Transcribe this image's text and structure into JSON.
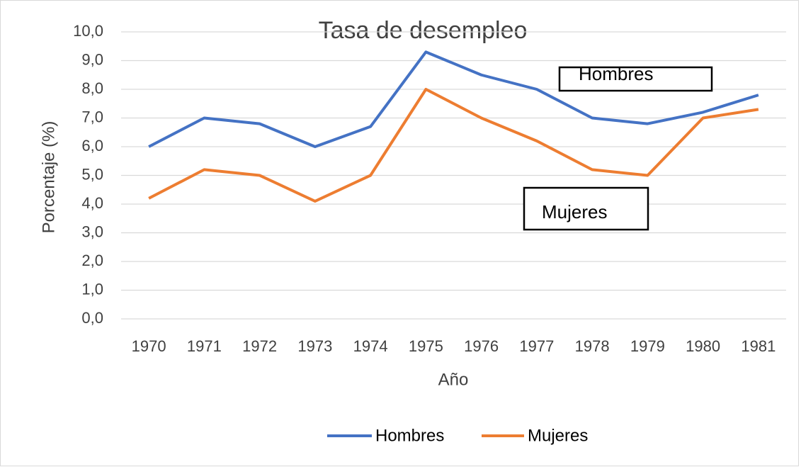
{
  "chart_data": {
    "type": "line",
    "title": "Tasa de desempleo",
    "x_label": "Año",
    "y_label": "Porcentaje (%)",
    "categories": [
      "1970",
      "1971",
      "1972",
      "1973",
      "1974",
      "1975",
      "1976",
      "1977",
      "1978",
      "1979",
      "1980",
      "1981"
    ],
    "series": [
      {
        "name": "Hombres",
        "color": "#4472c4",
        "values": [
          6.0,
          7.0,
          6.8,
          6.0,
          6.7,
          9.3,
          8.5,
          8.0,
          7.0,
          6.8,
          7.2,
          7.8
        ]
      },
      {
        "name": "Mujeres",
        "color": "#ed7d31",
        "values": [
          4.2,
          5.2,
          5.0,
          4.1,
          5.0,
          8.0,
          7.0,
          6.2,
          5.2,
          5.0,
          7.0,
          7.3
        ]
      }
    ],
    "ylim": [
      0,
      10
    ],
    "yticks": [
      {
        "value": 0,
        "label": "0,0"
      },
      {
        "value": 1,
        "label": "1,0"
      },
      {
        "value": 2,
        "label": "2,0"
      },
      {
        "value": 3,
        "label": "3,0"
      },
      {
        "value": 4,
        "label": "4,0"
      },
      {
        "value": 5,
        "label": "5,0"
      },
      {
        "value": 6,
        "label": "6,0"
      },
      {
        "value": 7,
        "label": "7,0"
      },
      {
        "value": 8,
        "label": "8,0"
      },
      {
        "value": 9,
        "label": "9,0"
      },
      {
        "value": 10,
        "label": "10,0"
      }
    ],
    "grid": true,
    "legend": "bottom",
    "annotations": [
      "Hombres",
      "Mujeres"
    ]
  }
}
